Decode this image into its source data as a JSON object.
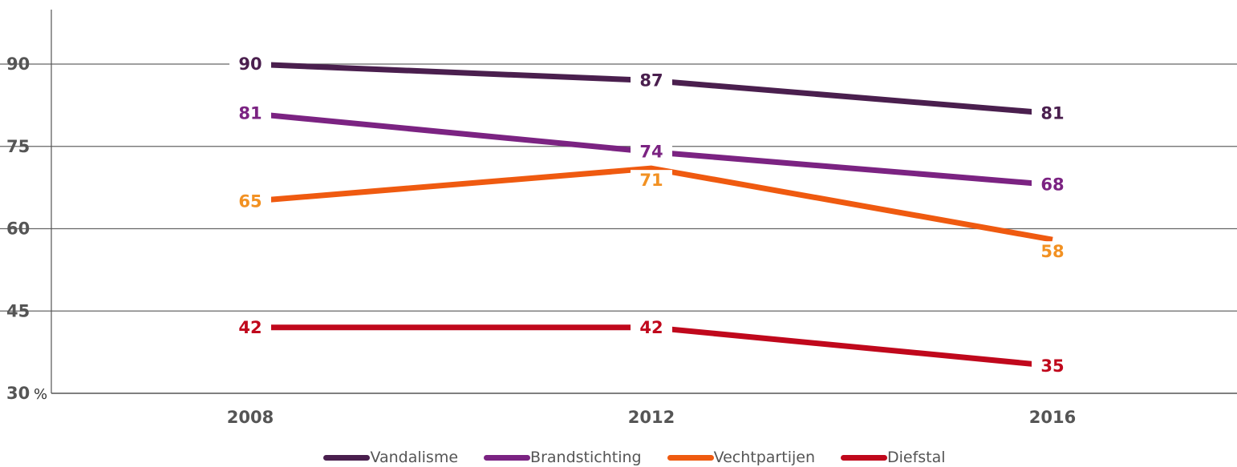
{
  "chart_data": {
    "type": "line",
    "categories": [
      "2008",
      "2012",
      "2016"
    ],
    "ylim": [
      30,
      100
    ],
    "yticks": [
      30,
      45,
      60,
      75,
      90
    ],
    "y_unit": "%",
    "grid": true,
    "legend_position": "bottom",
    "series": [
      {
        "name": "Vandalisme",
        "values": [
          90,
          87,
          81
        ],
        "color": "#4a1f4e",
        "label_color": "#4a1f4e",
        "label_positions": [
          "left",
          "right",
          "right"
        ]
      },
      {
        "name": "Brandstichting",
        "values": [
          81,
          74,
          68
        ],
        "color": "#7b2382",
        "label_color": "#7b2382",
        "label_positions": [
          "left",
          "right",
          "right"
        ]
      },
      {
        "name": "Vechtpartijen",
        "values": [
          65,
          71,
          58
        ],
        "color": "#ef5a10",
        "label_color": "#f29122",
        "label_positions": [
          "left",
          "below",
          "below-right"
        ]
      },
      {
        "name": "Diefstal",
        "values": [
          42,
          42,
          35
        ],
        "color": "#c0081c",
        "label_color": "#c0081c",
        "label_positions": [
          "left",
          "right",
          "right"
        ]
      }
    ]
  }
}
